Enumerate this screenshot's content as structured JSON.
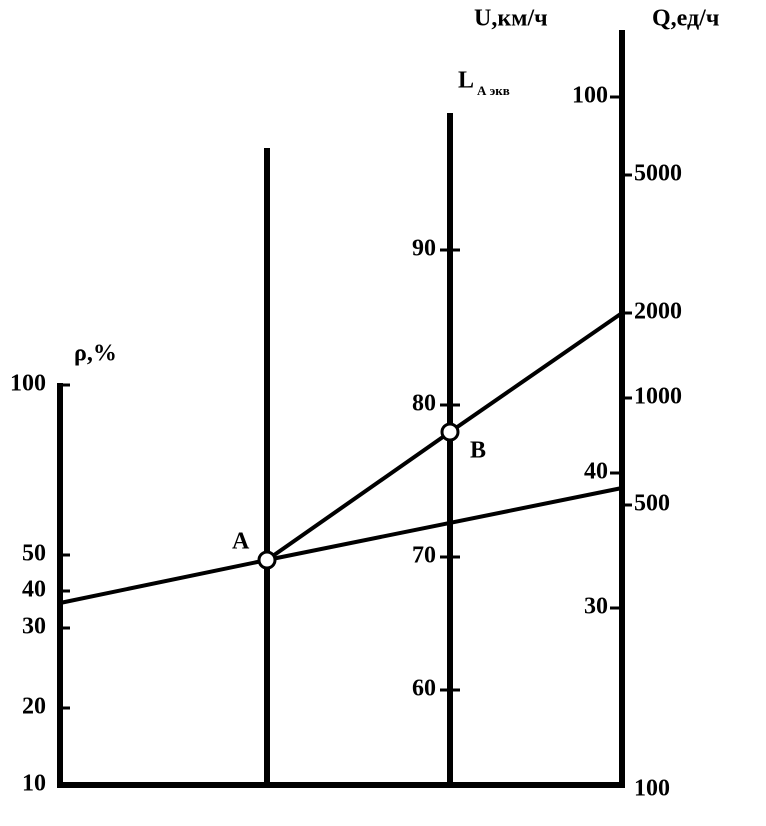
{
  "axes": {
    "p": {
      "label": "ρ,%",
      "ticks": [
        "100",
        "50",
        "40",
        "30",
        "20",
        "10"
      ]
    },
    "l": {
      "label": "L",
      "subscript": "А экв",
      "ticks": [
        "90",
        "80",
        "70",
        "60"
      ]
    },
    "u": {
      "label": "U,км/ч",
      "ticks": [
        "100",
        "40",
        "30"
      ]
    },
    "q": {
      "label": "Q,ед/ч",
      "ticks": [
        "5000",
        "2000",
        "1000",
        "500",
        "100"
      ]
    }
  },
  "points": {
    "a": "A",
    "b": "B"
  }
}
